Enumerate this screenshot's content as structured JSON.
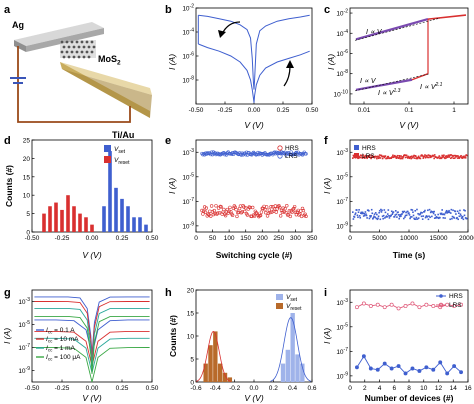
{
  "figure": {
    "panel_letters": [
      "a",
      "b",
      "c",
      "d",
      "e",
      "f",
      "g",
      "h",
      "i"
    ],
    "device": {
      "top_electrode": "Ag",
      "channel": "MoS",
      "channel_sub": "2",
      "bottom_electrode": "Ti/Au"
    },
    "colors": {
      "blue": "#3f5fcf",
      "red": "#d93030",
      "pink": "#e05a7a",
      "teal": "#2aa89a",
      "green": "#3aa845",
      "orange": "#b86a2a",
      "purple": "#7a4ab0",
      "lightblue": "#9fb3ea"
    }
  },
  "chart_data": [
    {
      "panel": "b",
      "type": "line",
      "xlabel": "V (V)",
      "ylabel": "I (A)",
      "xlim": [
        -0.5,
        0.5
      ],
      "ylog": true,
      "ylim_exp": [
        -10,
        -2
      ],
      "xticks": [
        "-0.50",
        "-0.25",
        "0.00",
        "0.25",
        "0.50"
      ],
      "yticks": [
        "10",
        "10",
        "10",
        "10"
      ],
      "ytick_exp": [
        "-2",
        "-4",
        "-6",
        "-8"
      ],
      "ytick_bottom": "10",
      "ytick_bottom_exp": "-10",
      "series": [
        {
          "values_note": "",
          "x": [
            -0.48,
            -0.4,
            -0.3,
            -0.2,
            -0.12,
            -0.06,
            -0.03,
            -0.015,
            -0.005,
            0.0,
            0.005,
            0.02,
            0.05,
            0.1,
            0.2,
            0.3,
            0.4,
            0.48
          ],
          "y_exp_upper": [
            -2.6,
            -2.7,
            -2.9,
            -3.1,
            -3.4,
            -3.8,
            -4.5,
            -6.2,
            -8.2,
            -8.8,
            -8.0,
            -5.0,
            -3.9,
            -3.5,
            -3.1,
            -2.9,
            -2.75,
            -2.6
          ],
          "y_exp_lower": [
            -5.0,
            -5.3,
            -5.6,
            -6.0,
            -6.5,
            -7.2,
            -8.0,
            -8.8,
            -9.5,
            -9.9,
            -9.3,
            -8.4,
            -7.6,
            -7.0,
            -6.5,
            -6.2,
            -5.9,
            -5.6
          ]
        }
      ]
    },
    {
      "panel": "c",
      "type": "line",
      "xlabel": "V (V)",
      "ylabel": "I (A)",
      "xlog": true,
      "ylog": true,
      "xticks": [
        "0.01",
        "0.1",
        "1"
      ],
      "ytick_exp": [
        "-2",
        "-4",
        "-6",
        "-8",
        "-10"
      ],
      "annotations": [
        "I ∝ V",
        "I ∝ V",
        "I ∝ V",
        "1.3",
        "I ∝ V",
        "2.1"
      ]
    },
    {
      "panel": "d",
      "type": "bar",
      "xlabel": "V (V)",
      "ylabel": "Counts (#)",
      "xlim": [
        -0.5,
        0.5
      ],
      "ylim": [
        0,
        25
      ],
      "xticks": [
        "-0.50",
        "-0.25",
        "0.00",
        "0.25",
        "0.50"
      ],
      "yticks": [
        "0",
        "5",
        "10",
        "15",
        "20",
        "25"
      ],
      "legend": [
        {
          "name": "V",
          "sub": "set"
        },
        {
          "name": "V",
          "sub": "reset"
        }
      ],
      "series": [
        {
          "name": "Vset",
          "x": [
            0.1,
            0.15,
            0.2,
            0.25,
            0.3,
            0.35,
            0.4,
            0.45
          ],
          "values": [
            7,
            22,
            12,
            9,
            7,
            4,
            4,
            2
          ]
        },
        {
          "name": "Vreset",
          "x": [
            -0.4,
            -0.35,
            -0.3,
            -0.25,
            -0.2,
            -0.15,
            -0.1,
            -0.05,
            0.0
          ],
          "values": [
            5,
            7,
            8,
            6,
            10,
            7,
            5,
            4,
            2
          ]
        }
      ]
    },
    {
      "panel": "e",
      "type": "scatter",
      "xlabel": "Switching cycle (#)",
      "ylabel": "I (A)",
      "xlim": [
        0,
        370
      ],
      "xticks": [
        "0",
        "50",
        "100",
        "150",
        "200",
        "250",
        "300",
        "350"
      ],
      "ytick_exp": [
        "-3",
        "-5",
        "-7",
        "-9"
      ],
      "legend": [
        "HRS",
        "LRS"
      ],
      "series": [
        {
          "name": "HRS",
          "y_exp_level": -7.8
        },
        {
          "name": "LRS",
          "y_exp_level": -3.1
        }
      ]
    },
    {
      "panel": "f",
      "type": "scatter",
      "xlabel": "Time (s)",
      "ylabel": "I (A)",
      "xlim": [
        0,
        20000
      ],
      "xticks": [
        "0",
        "5000",
        "10000",
        "15000",
        "20000"
      ],
      "ytick_exp": [
        "-3",
        "-5",
        "-7",
        "-9"
      ],
      "legend": [
        "HRS",
        "LRS"
      ],
      "series": [
        {
          "name": "HRS",
          "y_exp_level": -8.0
        },
        {
          "name": "LRS",
          "y_exp_level": -3.3
        }
      ]
    },
    {
      "panel": "g",
      "type": "line",
      "xlabel": "V (V)",
      "ylabel": "I (A)",
      "xlim": [
        -0.5,
        0.5
      ],
      "xticks": [
        "-0.50",
        "-0.25",
        "0.00",
        "0.25",
        "0.50"
      ],
      "ytick_exp": [
        "-3",
        "-5",
        "-7",
        "-9"
      ],
      "legend": [
        {
          "label": "I",
          "sub": "cc",
          "value": "= 0.1 A"
        },
        {
          "label": "I",
          "sub": "cc",
          "value": "= 10 mA"
        },
        {
          "label": "I",
          "sub": "cc",
          "value": "= 1 mA"
        },
        {
          "label": "I",
          "sub": "cc",
          "value": "= 100 μA"
        }
      ]
    },
    {
      "panel": "h",
      "type": "bar",
      "xlabel": "V (V)",
      "ylabel": "Counts (#)",
      "xlim": [
        -0.6,
        0.6
      ],
      "ylim": [
        0,
        20
      ],
      "xticks": [
        "-0.6",
        "-0.4",
        "-0.2",
        "0.0",
        "0.2",
        "0.4",
        "0.6"
      ],
      "yticks": [
        "0",
        "5",
        "10",
        "15",
        "20"
      ],
      "legend": [
        {
          "name": "V",
          "sub": "set"
        },
        {
          "name": "V",
          "sub": "reset"
        }
      ],
      "series": [
        {
          "name": "Vset",
          "x": [
            0.3,
            0.35,
            0.4,
            0.45,
            0.5
          ],
          "values": [
            4,
            7,
            15,
            6,
            4
          ]
        },
        {
          "name": "Vreset",
          "x": [
            -0.5,
            -0.45,
            -0.4,
            -0.35,
            -0.3,
            -0.25
          ],
          "values": [
            4,
            8,
            11,
            4,
            2,
            1
          ]
        }
      ]
    },
    {
      "panel": "i",
      "type": "line",
      "xlabel": "Number of devices (#)",
      "ylabel": "I (A)",
      "xlim": [
        0,
        17
      ],
      "xticks": [
        "0",
        "2",
        "4",
        "6",
        "8",
        "10",
        "12",
        "14",
        "16"
      ],
      "ytick_exp": [
        "-3",
        "-5",
        "-7",
        "-9"
      ],
      "legend": [
        "HRS",
        "LRS"
      ],
      "series": [
        {
          "name": "HRS",
          "x": [
            1,
            2,
            3,
            4,
            5,
            6,
            7,
            8,
            9,
            10,
            11,
            12,
            13,
            14,
            15,
            16
          ],
          "y_exp": [
            -8.3,
            -7.4,
            -8.4,
            -8.5,
            -8.0,
            -8.4,
            -8.2,
            -8.8,
            -8.4,
            -8.6,
            -8.3,
            -8.5,
            -7.9,
            -8.8,
            -8.2,
            -8.7
          ]
        },
        {
          "name": "LRS",
          "x": [
            1,
            2,
            3,
            4,
            5,
            6,
            7,
            8,
            9,
            10,
            11,
            12,
            13,
            14,
            15,
            16
          ],
          "y_exp": [
            -3.4,
            -3.1,
            -3.3,
            -3.2,
            -3.4,
            -3.2,
            -3.5,
            -3.3,
            -3.1,
            -3.4,
            -3.2,
            -3.3,
            -3.4,
            -3.2,
            -3.3,
            -3.2
          ]
        }
      ]
    }
  ]
}
